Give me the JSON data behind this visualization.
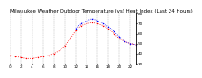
{
  "title": "Milwaukee Weather Outdoor Temperature (vs) Heat Index (Last 24 Hours)",
  "temp": [
    38,
    37,
    36,
    35,
    35,
    36,
    37,
    38,
    40,
    43,
    48,
    55,
    63,
    68,
    70,
    71,
    70,
    68,
    65,
    60,
    55,
    52,
    50,
    49
  ],
  "heat_index": [
    null,
    null,
    null,
    null,
    null,
    null,
    null,
    null,
    null,
    null,
    null,
    null,
    65,
    70,
    73,
    75,
    73,
    70,
    67,
    62,
    57,
    52,
    50,
    49
  ],
  "xlim": [
    0,
    23
  ],
  "ylim": [
    30,
    80
  ],
  "yticks": [
    30,
    40,
    50,
    60,
    70,
    80
  ],
  "color_temp": "#ff0000",
  "color_heat": "#0000ff",
  "bg_color": "#ffffff",
  "grid_color": "#aaaaaa",
  "title_fontsize": 4.0,
  "tick_fontsize": 3.0,
  "line_width": 0.6,
  "marker_size": 1.0,
  "grid_lw": 0.3
}
